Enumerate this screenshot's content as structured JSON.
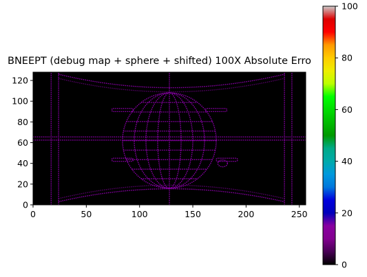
{
  "chart_data": {
    "type": "heatmap",
    "title": "BNEEPT (debug map + sphere + shifted) 100X Absolute Erro",
    "xlabel": "",
    "ylabel": "",
    "xlim": [
      0,
      256
    ],
    "ylim": [
      0,
      128
    ],
    "x_ticks": [
      0,
      50,
      100,
      150,
      200,
      250
    ],
    "y_ticks": [
      0,
      20,
      40,
      60,
      80,
      100,
      120
    ],
    "colorbar": {
      "colormap": "nipy_spectral",
      "range": [
        0,
        100
      ],
      "ticks": [
        0,
        20,
        40,
        60,
        80,
        100
      ]
    },
    "error_level_typical": 8,
    "background_value": 0
  }
}
